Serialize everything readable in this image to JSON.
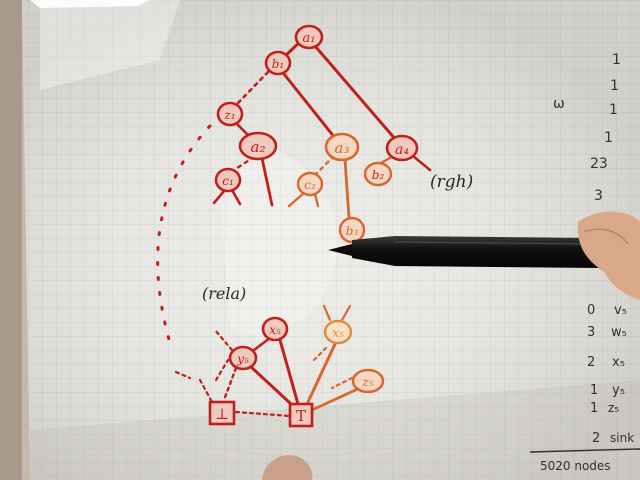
{
  "nodes": [
    {
      "id": "a1",
      "label": "a₁",
      "color": "#c0201c"
    },
    {
      "id": "b1",
      "label": "b₁",
      "color": "#c0201c"
    },
    {
      "id": "z1",
      "label": "z₁",
      "color": "#c0201c"
    },
    {
      "id": "a2",
      "label": "a₂",
      "color": "#c0201c"
    },
    {
      "id": "a3",
      "label": "a₃",
      "color": "#d8662e"
    },
    {
      "id": "a4",
      "label": "a₄",
      "color": "#c0201c"
    },
    {
      "id": "c1",
      "label": "c₁",
      "color": "#c0201c"
    },
    {
      "id": "c2",
      "label": "c₂",
      "color": "#d8662e"
    },
    {
      "id": "b2",
      "label": "b₂",
      "color": "#d8662e"
    },
    {
      "id": "b3",
      "label": "b₃",
      "color": "#d8662e"
    },
    {
      "id": "x5",
      "label": "x₅",
      "color": "#c0201c"
    },
    {
      "id": "x5b",
      "label": "x₅",
      "color": "#e08a3a"
    },
    {
      "id": "y5",
      "label": "y₅",
      "color": "#c0201c"
    },
    {
      "id": "z5",
      "label": "z₅",
      "color": "#d8662e"
    },
    {
      "id": "bottom",
      "label": "⊥",
      "color": "#c0201c"
    },
    {
      "id": "top",
      "label": "T",
      "color": "#c0201c"
    }
  ],
  "annotations": {
    "rgh": "(rgh)",
    "rela": "(rela)"
  },
  "margin_numbers": [
    "1",
    "1",
    "1",
    "1",
    "23",
    "3"
  ],
  "margin_glyph": "ω",
  "margin_table": [
    {
      "count": "0",
      "label": "v₅"
    },
    {
      "count": "3",
      "label": "w₅"
    },
    {
      "count": "2",
      "label": "x₅"
    },
    {
      "count": "1",
      "label": "y₅"
    },
    {
      "count": "1",
      "label": "z₅"
    },
    {
      "count": "2",
      "label": "sink"
    }
  ],
  "total": "5020 nodes",
  "colors": {
    "pen_red": "#c0201c",
    "pen_orange": "#d8662e",
    "marker": "#141414",
    "paper": "#ecebe6",
    "grid": "#c9d3dc"
  }
}
